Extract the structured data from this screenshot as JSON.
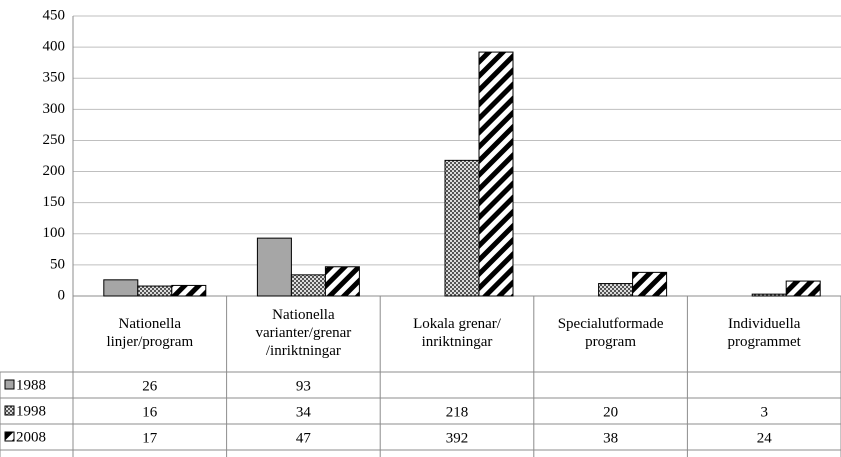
{
  "chart_data": {
    "type": "bar",
    "categories": [
      [
        "Nationella",
        "linjer/program"
      ],
      [
        "Nationella",
        "varianter/grenar",
        "/inriktningar"
      ],
      [
        "Lokala grenar/",
        "inriktningar"
      ],
      [
        "Specialutformade",
        "program"
      ],
      [
        "Individuella",
        "programmet"
      ]
    ],
    "series": [
      {
        "name": "1988",
        "color": "#a6a6a6",
        "values": [
          26,
          93,
          null,
          null,
          null
        ]
      },
      {
        "name": "1998",
        "color": "crosshatch",
        "values": [
          16,
          34,
          218,
          20,
          3
        ]
      },
      {
        "name": "2008",
        "color": "diagonal",
        "values": [
          17,
          47,
          392,
          38,
          24
        ]
      }
    ],
    "ylim": [
      0,
      450
    ],
    "yticks": [
      0,
      50,
      100,
      150,
      200,
      250,
      300,
      350,
      400,
      450
    ],
    "grid": true
  }
}
